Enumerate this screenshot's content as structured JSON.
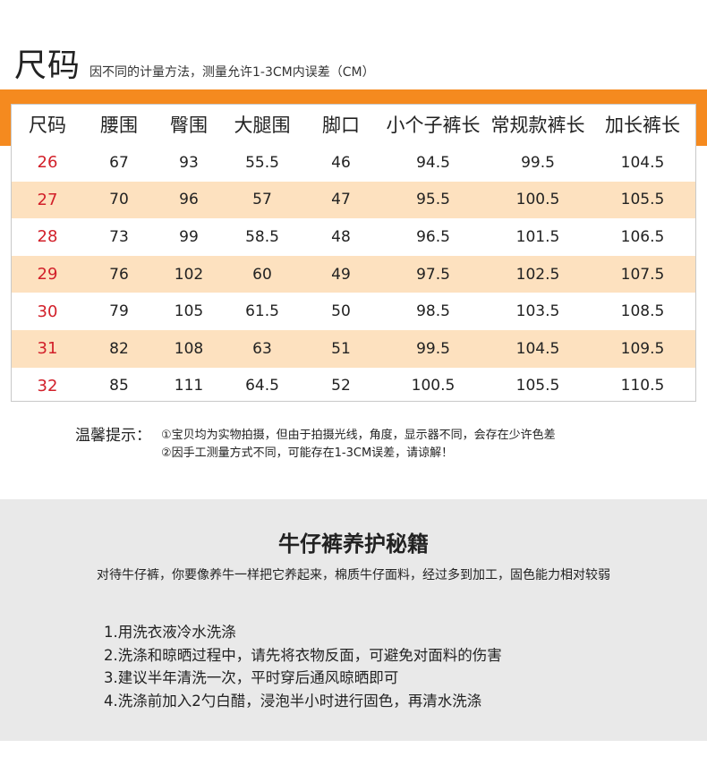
{
  "header": {
    "title": "尺码",
    "subtitle": "因不同的计量方法，测量允许1-3CM内误差（CM）"
  },
  "colors": {
    "accent_bar": "#f58a1f",
    "stripe": "#fde1bf",
    "size_text": "#d2202a",
    "care_bg": "#e9e9e9"
  },
  "table": {
    "headers": [
      "尺码",
      "腰围",
      "臀围",
      "大腿围",
      "脚口",
      "小个子裤长",
      "常规款裤长",
      "加长裤长"
    ],
    "rows": [
      [
        "26",
        "67",
        "93",
        "55.5",
        "46",
        "94.5",
        "99.5",
        "104.5"
      ],
      [
        "27",
        "70",
        "96",
        "57",
        "47",
        "95.5",
        "100.5",
        "105.5"
      ],
      [
        "28",
        "73",
        "99",
        "58.5",
        "48",
        "96.5",
        "101.5",
        "106.5"
      ],
      [
        "29",
        "76",
        "102",
        "60",
        "49",
        "97.5",
        "102.5",
        "107.5"
      ],
      [
        "30",
        "79",
        "105",
        "61.5",
        "50",
        "98.5",
        "103.5",
        "108.5"
      ],
      [
        "31",
        "82",
        "108",
        "63",
        "51",
        "99.5",
        "104.5",
        "109.5"
      ],
      [
        "32",
        "85",
        "111",
        "64.5",
        "52",
        "100.5",
        "105.5",
        "110.5"
      ]
    ]
  },
  "tips": {
    "label": "温馨提示：",
    "line1": "①宝贝均为实物拍摄，但由于拍摄光线，角度，显示器不同，会存在少许色差",
    "line2": "②因手工测量方式不同，可能存在1-3CM误差，请谅解！"
  },
  "care": {
    "title": "牛仔裤养护秘籍",
    "subtitle": "对待牛仔裤，你要像养牛一样把它养起来，棉质牛仔面料，经过多到加工，固色能力相对较弱",
    "items": [
      "1.用洗衣液冷水洗涤",
      "2.洗涤和晾晒过程中，请先将衣物反面，可避免对面料的伤害",
      "3.建议半年清洗一次，平时穿后通风晾晒即可",
      "4.洗涤前加入2勺白醋，浸泡半小时进行固色，再清水洗涤"
    ]
  }
}
